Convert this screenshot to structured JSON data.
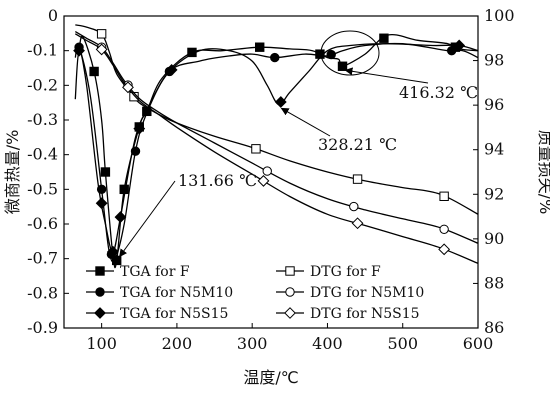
{
  "chart_data": {
    "type": "line",
    "xlabel": "温度/℃",
    "ylabel_left": "微商热量/%",
    "ylabel_right": "质量损失/%",
    "x_range": [
      50,
      600
    ],
    "x_ticks": [
      100,
      200,
      300,
      400,
      500,
      600
    ],
    "y_left_range": [
      -0.9,
      0
    ],
    "y_left_ticks": [
      "0",
      "-0.1",
      "-0.2",
      "-0.3",
      "-0.4",
      "-0.5",
      "-0.6",
      "-0.7",
      "-0.8",
      "-0.9"
    ],
    "y_right_range": [
      86,
      100
    ],
    "y_right_ticks": [
      "100",
      "98",
      "96",
      "94",
      "92",
      "90",
      "88",
      "86"
    ],
    "series": [
      {
        "name": "TGA for F",
        "axis": "left",
        "marker": "square-filled",
        "points": [
          [
            70,
            -0.1
          ],
          [
            75,
            -0.06
          ],
          [
            90,
            -0.16
          ],
          [
            100,
            -0.3
          ],
          [
            105,
            -0.45
          ],
          [
            115,
            -0.69
          ],
          [
            120,
            -0.705
          ],
          [
            130,
            -0.5
          ],
          [
            150,
            -0.32
          ],
          [
            160,
            -0.275
          ],
          [
            180,
            -0.18
          ],
          [
            220,
            -0.105
          ],
          [
            260,
            -0.1
          ],
          [
            310,
            -0.09
          ],
          [
            350,
            -0.095
          ],
          [
            380,
            -0.1
          ],
          [
            400,
            -0.12
          ],
          [
            415,
            -0.125
          ],
          [
            420,
            -0.145
          ],
          [
            450,
            -0.11
          ],
          [
            480,
            -0.055
          ],
          [
            520,
            -0.07
          ],
          [
            560,
            -0.08
          ],
          [
            575,
            -0.095
          ],
          [
            600,
            -0.1
          ]
        ],
        "markers_x": [
          90,
          105,
          120,
          130,
          150,
          160,
          220,
          310,
          390,
          420,
          475,
          570
        ]
      },
      {
        "name": "TGA for N5M10",
        "axis": "left",
        "marker": "circle-filled",
        "points": [
          [
            65,
            -0.12
          ],
          [
            70,
            -0.09
          ],
          [
            85,
            -0.23
          ],
          [
            100,
            -0.5
          ],
          [
            110,
            -0.68
          ],
          [
            118,
            -0.7
          ],
          [
            130,
            -0.6
          ],
          [
            145,
            -0.39
          ],
          [
            160,
            -0.28
          ],
          [
            190,
            -0.16
          ],
          [
            230,
            -0.13
          ],
          [
            270,
            -0.115
          ],
          [
            300,
            -0.11
          ],
          [
            330,
            -0.12
          ],
          [
            370,
            -0.11
          ],
          [
            400,
            -0.115
          ],
          [
            420,
            -0.1
          ],
          [
            450,
            -0.085
          ],
          [
            500,
            -0.08
          ],
          [
            560,
            -0.1
          ],
          [
            580,
            -0.1
          ],
          [
            600,
            -0.12
          ]
        ],
        "markers_x": [
          70,
          100,
          113,
          145,
          190,
          330,
          405,
          565
        ]
      },
      {
        "name": "TGA for N5S15",
        "axis": "left",
        "marker": "diamond-filled",
        "points": [
          [
            65,
            -0.24
          ],
          [
            70,
            -0.1
          ],
          [
            80,
            -0.2
          ],
          [
            95,
            -0.48
          ],
          [
            105,
            -0.6
          ],
          [
            115,
            -0.68
          ],
          [
            125,
            -0.58
          ],
          [
            145,
            -0.35
          ],
          [
            165,
            -0.25
          ],
          [
            190,
            -0.16
          ],
          [
            230,
            -0.1
          ],
          [
            270,
            -0.1
          ],
          [
            300,
            -0.13
          ],
          [
            320,
            -0.2
          ],
          [
            335,
            -0.255
          ],
          [
            350,
            -0.22
          ],
          [
            375,
            -0.16
          ],
          [
            400,
            -0.1
          ],
          [
            430,
            -0.085
          ],
          [
            480,
            -0.08
          ],
          [
            540,
            -0.085
          ],
          [
            575,
            -0.085
          ],
          [
            600,
            -0.1
          ]
        ],
        "markers_x": [
          70,
          100,
          115,
          125,
          150,
          193,
          338,
          575
        ]
      },
      {
        "name": "DTG for F",
        "axis": "right",
        "marker": "square-open",
        "points": [
          [
            65,
            99.6
          ],
          [
            80,
            99.5
          ],
          [
            100,
            99.2
          ],
          [
            110,
            98.4
          ],
          [
            120,
            97.4
          ],
          [
            140,
            96.5
          ],
          [
            150,
            96.1
          ],
          [
            175,
            95.6
          ],
          [
            200,
            95.2
          ],
          [
            250,
            94.6
          ],
          [
            300,
            94.1
          ],
          [
            350,
            93.5
          ],
          [
            400,
            93.0
          ],
          [
            450,
            92.6
          ],
          [
            500,
            92.3
          ],
          [
            550,
            92.0
          ],
          [
            600,
            91.1
          ]
        ],
        "markers_x": [
          100,
          143,
          305,
          440,
          555
        ]
      },
      {
        "name": "DTG for N5M10",
        "axis": "right",
        "marker": "circle-open",
        "points": [
          [
            65,
            99.3
          ],
          [
            80,
            99.0
          ],
          [
            100,
            98.6
          ],
          [
            115,
            97.9
          ],
          [
            130,
            97.1
          ],
          [
            150,
            96.3
          ],
          [
            175,
            95.7
          ],
          [
            200,
            95.2
          ],
          [
            250,
            94.3
          ],
          [
            300,
            93.4
          ],
          [
            350,
            92.5
          ],
          [
            400,
            91.8
          ],
          [
            450,
            91.3
          ],
          [
            500,
            90.9
          ],
          [
            550,
            90.5
          ],
          [
            600,
            89.8
          ]
        ],
        "markers_x": [
          100,
          135,
          320,
          435,
          555
        ]
      },
      {
        "name": "DTG for N5S15",
        "axis": "right",
        "marker": "diamond-open",
        "points": [
          [
            65,
            99.2
          ],
          [
            80,
            98.9
          ],
          [
            100,
            98.5
          ],
          [
            115,
            97.8
          ],
          [
            130,
            97.0
          ],
          [
            150,
            96.2
          ],
          [
            175,
            95.6
          ],
          [
            200,
            95.0
          ],
          [
            250,
            93.9
          ],
          [
            300,
            92.9
          ],
          [
            350,
            91.9
          ],
          [
            400,
            91.1
          ],
          [
            450,
            90.6
          ],
          [
            500,
            90.1
          ],
          [
            550,
            89.6
          ],
          [
            600,
            88.9
          ]
        ],
        "markers_x": [
          100,
          135,
          315,
          440,
          555
        ]
      }
    ],
    "annotations": [
      {
        "text": "131.66 ℃",
        "arrow_to": [
          120,
          -0.705
        ]
      },
      {
        "text": "328.21 ℃",
        "arrow_to": [
          335,
          -0.255
        ]
      },
      {
        "text": "416.32 ℃",
        "arrow_to": [
          420,
          -0.145
        ]
      }
    ],
    "legend_position": "bottom-left",
    "legend": [
      {
        "label": "TGA for F",
        "marker": "square-filled"
      },
      {
        "label": "DTG for F",
        "marker": "square-open"
      },
      {
        "label": "TGA for N5M10",
        "marker": "circle-filled"
      },
      {
        "label": "DTG for N5M10",
        "marker": "circle-open"
      },
      {
        "label": "TGA for N5S15",
        "marker": "diamond-filled"
      },
      {
        "label": "DTG for N5S15",
        "marker": "diamond-open"
      }
    ]
  }
}
